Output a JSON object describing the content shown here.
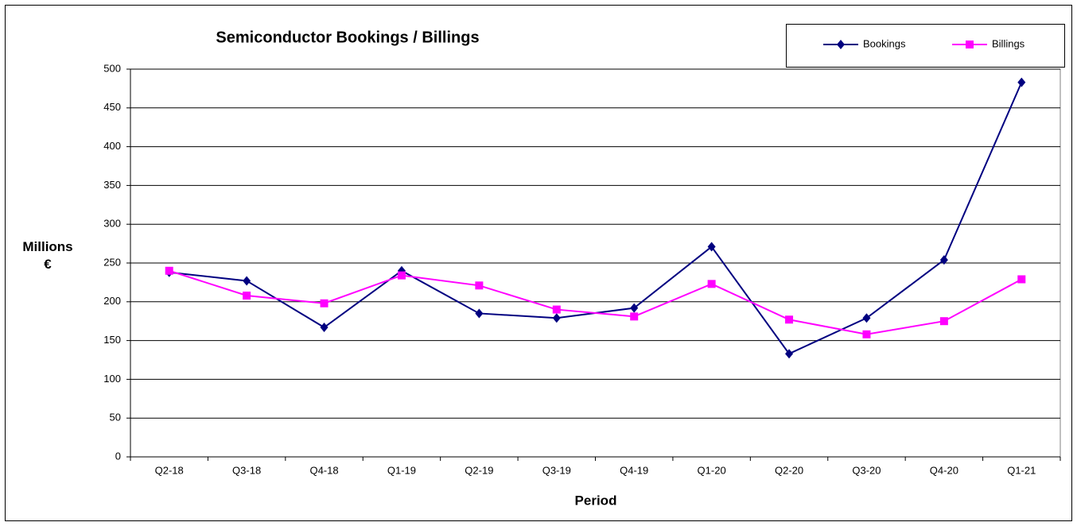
{
  "chart_data": {
    "type": "line",
    "title": "Semiconductor Bookings / Billings",
    "xlabel": "Period",
    "ylabel": "Millions €",
    "categories": [
      "Q2-18",
      "Q3-18",
      "Q4-18",
      "Q1-19",
      "Q2-19",
      "Q3-19",
      "Q4-19",
      "Q1-20",
      "Q2-20",
      "Q3-20",
      "Q4-20",
      "Q1-21"
    ],
    "series": [
      {
        "name": "Bookings",
        "color": "#000080",
        "marker": "diamond",
        "values": [
          238,
          227,
          167,
          240,
          185,
          179,
          192,
          271,
          133,
          179,
          254,
          483
        ]
      },
      {
        "name": "Billings",
        "color": "#ff00ff",
        "marker": "square",
        "values": [
          240,
          208,
          198,
          234,
          221,
          190,
          181,
          223,
          177,
          158,
          175,
          229
        ]
      }
    ],
    "ylim": [
      0,
      500
    ],
    "yticks": [
      0,
      50,
      100,
      150,
      200,
      250,
      300,
      350,
      400,
      450,
      500
    ],
    "grid": true
  }
}
